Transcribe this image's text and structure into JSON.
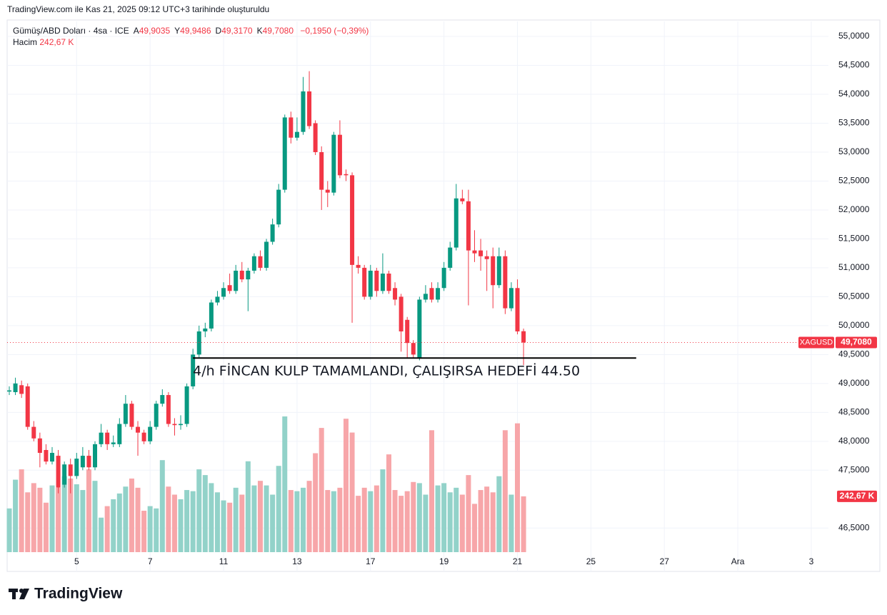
{
  "caption": "TradingView.com ile Kas 21, 2025 09:12 UTC+3 tarihinde oluşturuldu",
  "logo": "TradingView",
  "chart_data": {
    "type": "candlestick",
    "legend": {
      "title": "Gümüş/ABD Doları · 4sa · ICE",
      "fields": [
        {
          "key": "A",
          "value": "49,9035"
        },
        {
          "key": "Y",
          "value": "49,9486"
        },
        {
          "key": "D",
          "value": "49,3170"
        },
        {
          "key": "K",
          "value": "49,7080"
        }
      ],
      "change": "−0,1950 (−0,39%)",
      "volume_title": "Hacim",
      "volume_value": "242,67 K"
    },
    "open": [
      48.86,
      48.85,
      48.97,
      48.95,
      48.25,
      48.05,
      47.85,
      47.65,
      47.75,
      47.25,
      47.6,
      47.4,
      47.55,
      47.75,
      47.55,
      47.95,
      48.15,
      47.95,
      47.95,
      48.3,
      48.65,
      48.25,
      48.15,
      48.0,
      48.25,
      48.65,
      48.8,
      48.3,
      48.28,
      48.3,
      48.95,
      49.5,
      49.9,
      49.95,
      50.4,
      50.5,
      50.7,
      50.6,
      50.95,
      50.8,
      50.95,
      51.2,
      51.0,
      51.45,
      51.75,
      52.35,
      53.6,
      53.25,
      53.35,
      54.05,
      53.5,
      53.0,
      52.35,
      52.3,
      53.3,
      52.62,
      52.6,
      51.05,
      51.0,
      50.5,
      50.95,
      50.6,
      50.9,
      50.65,
      50.5,
      50.1,
      49.7,
      49.45,
      50.45,
      50.65,
      50.45,
      50.65,
      51.0,
      51.35,
      52.2,
      52.15,
      51.3,
      51.3,
      51.2,
      51.2,
      50.7,
      51.2,
      50.3,
      50.65,
      49.9035
    ],
    "high": [
      48.95,
      49.1,
      49.05,
      49.0,
      48.35,
      48.15,
      47.95,
      47.9,
      47.85,
      47.65,
      47.7,
      47.8,
      47.9,
      47.85,
      48.0,
      48.3,
      48.2,
      48.1,
      48.4,
      48.8,
      48.7,
      48.35,
      48.2,
      48.35,
      48.7,
      48.9,
      48.85,
      48.4,
      48.45,
      49.0,
      49.6,
      50.0,
      50.05,
      50.45,
      50.6,
      50.75,
      50.9,
      51.05,
      51.1,
      51.0,
      51.25,
      51.3,
      51.5,
      51.85,
      52.45,
      53.65,
      53.7,
      53.6,
      54.3,
      54.4,
      53.55,
      53.1,
      52.5,
      53.35,
      53.55,
      52.7,
      52.65,
      51.2,
      51.05,
      51.05,
      51.0,
      51.25,
      50.95,
      50.75,
      50.55,
      50.15,
      49.75,
      50.5,
      50.7,
      50.75,
      50.75,
      51.1,
      51.45,
      52.45,
      52.35,
      52.35,
      51.65,
      51.5,
      51.3,
      51.35,
      51.35,
      51.3,
      50.75,
      50.8,
      49.9486
    ],
    "low": [
      48.8,
      48.8,
      48.75,
      48.2,
      48.0,
      47.55,
      47.6,
      47.6,
      47.1,
      47.2,
      47.1,
      47.35,
      47.5,
      47.5,
      47.5,
      47.9,
      47.85,
      47.9,
      47.9,
      48.25,
      48.2,
      47.75,
      47.95,
      47.95,
      48.2,
      48.6,
      48.25,
      48.1,
      48.2,
      48.25,
      48.9,
      49.45,
      49.8,
      49.9,
      50.35,
      50.45,
      50.55,
      50.55,
      50.75,
      50.25,
      50.9,
      50.95,
      50.95,
      51.4,
      51.7,
      52.3,
      53.15,
      53.2,
      53.3,
      53.4,
      52.95,
      52.0,
      52.05,
      52.25,
      52.55,
      52.5,
      50.05,
      50.9,
      50.45,
      50.45,
      50.5,
      50.55,
      50.55,
      50.35,
      49.55,
      49.45,
      49.45,
      49.4,
      50.4,
      50.4,
      50.4,
      50.6,
      50.95,
      51.3,
      52.1,
      50.35,
      51.1,
      50.95,
      50.6,
      50.3,
      50.65,
      50.2,
      50.25,
      49.85,
      49.317
    ],
    "close": [
      48.88,
      49.0,
      48.82,
      48.25,
      48.05,
      47.8,
      47.65,
      47.8,
      47.2,
      47.6,
      47.4,
      47.7,
      47.75,
      47.55,
      47.95,
      48.15,
      47.95,
      47.98,
      48.3,
      48.65,
      48.25,
      48.15,
      48.0,
      48.25,
      48.65,
      48.8,
      48.3,
      48.28,
      48.3,
      48.95,
      49.5,
      49.9,
      49.95,
      50.4,
      50.5,
      50.65,
      50.6,
      50.95,
      50.8,
      50.95,
      51.2,
      51.0,
      51.45,
      51.75,
      52.35,
      53.6,
      53.25,
      53.35,
      54.05,
      53.45,
      53.0,
      52.35,
      52.3,
      53.3,
      52.6,
      52.6,
      51.05,
      51.0,
      50.5,
      50.95,
      50.6,
      50.9,
      50.6,
      50.45,
      49.9,
      49.7,
      49.5,
      50.45,
      50.55,
      50.45,
      50.65,
      51.0,
      51.35,
      52.2,
      52.15,
      51.3,
      51.25,
      51.2,
      51.15,
      50.7,
      51.2,
      50.3,
      50.65,
      49.9,
      49.708
    ],
    "volume": [
      190,
      315,
      360,
      260,
      300,
      280,
      215,
      290,
      280,
      330,
      320,
      295,
      270,
      360,
      310,
      150,
      200,
      230,
      255,
      285,
      320,
      280,
      180,
      200,
      190,
      400,
      285,
      250,
      230,
      270,
      265,
      360,
      335,
      300,
      260,
      225,
      215,
      280,
      250,
      395,
      290,
      310,
      290,
      250,
      375,
      590,
      270,
      265,
      280,
      310,
      430,
      540,
      270,
      265,
      280,
      580,
      520,
      245,
      280,
      265,
      290,
      360,
      425,
      270,
      245,
      265,
      305,
      300,
      250,
      530,
      290,
      300,
      260,
      280,
      250,
      335,
      210,
      270,
      285,
      260,
      330,
      530,
      250,
      560,
      242.67
    ],
    "up_color": "#089981",
    "down_color": "#f23645",
    "volume_up_color": "#92d2c9",
    "volume_down_color": "#f7a6a9",
    "xlim": [
      -0.35,
      133.8
    ],
    "xticks": [
      {
        "value": 11,
        "label": "5"
      },
      {
        "value": 23,
        "label": "7"
      },
      {
        "value": 35,
        "label": "11"
      },
      {
        "value": 47,
        "label": "13"
      },
      {
        "value": 59,
        "label": "17"
      },
      {
        "value": 71,
        "label": "19"
      },
      {
        "value": 83,
        "label": "21"
      },
      {
        "value": 95,
        "label": "25"
      },
      {
        "value": 107,
        "label": "27"
      },
      {
        "value": 119,
        "label": "Ara"
      },
      {
        "value": 131,
        "label": "3"
      }
    ],
    "ylim": [
      45.75,
      55.26
    ],
    "yticks": [
      {
        "value": 46.5,
        "label": "46,5000"
      },
      {
        "value": 47.5,
        "label": "47,5000"
      },
      {
        "value": 48,
        "label": "48,0000"
      },
      {
        "value": 48.5,
        "label": "48,5000"
      },
      {
        "value": 49,
        "label": "49,0000"
      },
      {
        "value": 49.5,
        "label": "49,5000"
      },
      {
        "value": 50,
        "label": "50,0000"
      },
      {
        "value": 50.5,
        "label": "50,5000"
      },
      {
        "value": 51,
        "label": "51,0000"
      },
      {
        "value": 51.5,
        "label": "51,5000"
      },
      {
        "value": 52,
        "label": "52,0000"
      },
      {
        "value": 52.5,
        "label": "52,5000"
      },
      {
        "value": 53,
        "label": "53,0000"
      },
      {
        "value": 53.5,
        "label": "53,5000"
      },
      {
        "value": 54,
        "label": "54,0000"
      },
      {
        "value": 54.5,
        "label": "54,5000"
      },
      {
        "value": 55,
        "label": "55,0000"
      }
    ],
    "grid": true,
    "price_badge": {
      "symbol": "XAGUSD",
      "label": "49,7080"
    },
    "trendline": {
      "x": [
        30,
        102.4
      ],
      "y": 49.44,
      "color": "#000000"
    },
    "annotation": "4/h FİNCAN KULP TAMAMLANDI, ÇALIŞIRSA HEDEFİ 44.50"
  }
}
